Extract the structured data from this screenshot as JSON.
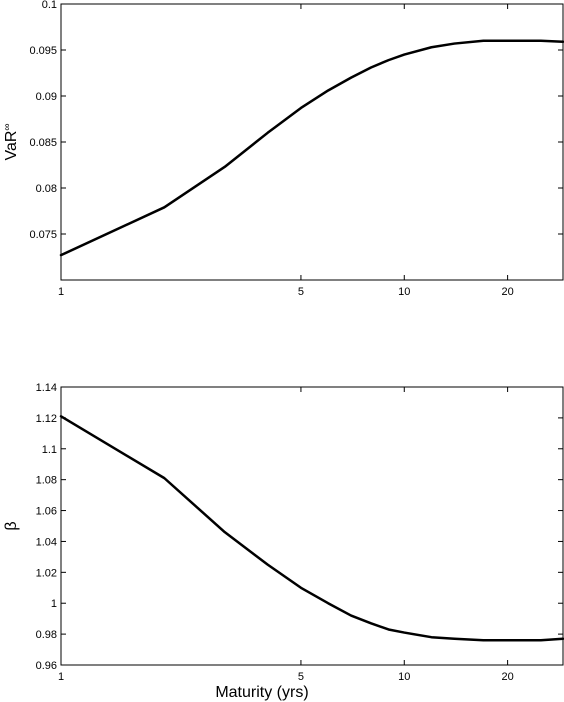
{
  "chart_data": [
    {
      "type": "line",
      "title": "",
      "xlabel": "",
      "ylabel": "VaR",
      "ylabel_superscript": "∞",
      "xscale": "log",
      "xlim": [
        1,
        29
      ],
      "ylim": [
        0.07,
        0.1
      ],
      "xticks": [
        1,
        5,
        10,
        20
      ],
      "xtick_labels": [
        "1",
        "5",
        "10",
        "20"
      ],
      "yticks": [
        0.075,
        0.08,
        0.085,
        0.09,
        0.095,
        0.1
      ],
      "ytick_labels": [
        "0.075",
        "0.08",
        "0.085",
        "0.09",
        "0.095",
        "0.1"
      ],
      "grid": false,
      "series": [
        {
          "x": [
            1,
            2,
            3,
            4,
            5,
            6,
            7,
            8,
            9,
            10,
            12,
            14,
            17,
            20,
            25,
            29
          ],
          "y": [
            0.0727,
            0.0779,
            0.0823,
            0.086,
            0.0887,
            0.0906,
            0.092,
            0.0931,
            0.0939,
            0.0945,
            0.0953,
            0.0957,
            0.096,
            0.096,
            0.096,
            0.0959
          ]
        }
      ]
    },
    {
      "type": "line",
      "title": "",
      "xlabel": "Maturity (yrs)",
      "ylabel": "β",
      "xscale": "log",
      "xlim": [
        1,
        29
      ],
      "ylim": [
        0.96,
        1.14
      ],
      "xticks": [
        1,
        5,
        10,
        20
      ],
      "xtick_labels": [
        "1",
        "5",
        "10",
        "20"
      ],
      "yticks": [
        0.96,
        0.98,
        1.0,
        1.02,
        1.04,
        1.06,
        1.08,
        1.1,
        1.12,
        1.14
      ],
      "ytick_labels": [
        "0.96",
        "0.98",
        "1",
        "1.02",
        "1.04",
        "1.06",
        "1.08",
        "1.1",
        "1.12",
        "1.14"
      ],
      "grid": false,
      "series": [
        {
          "x": [
            1,
            2,
            3,
            4,
            5,
            6,
            7,
            8,
            9,
            10,
            12,
            14,
            17,
            20,
            25,
            29
          ],
          "y": [
            1.121,
            1.081,
            1.046,
            1.025,
            1.01,
            1.0,
            0.992,
            0.987,
            0.983,
            0.981,
            0.978,
            0.977,
            0.976,
            0.976,
            0.976,
            0.977
          ]
        }
      ]
    }
  ]
}
